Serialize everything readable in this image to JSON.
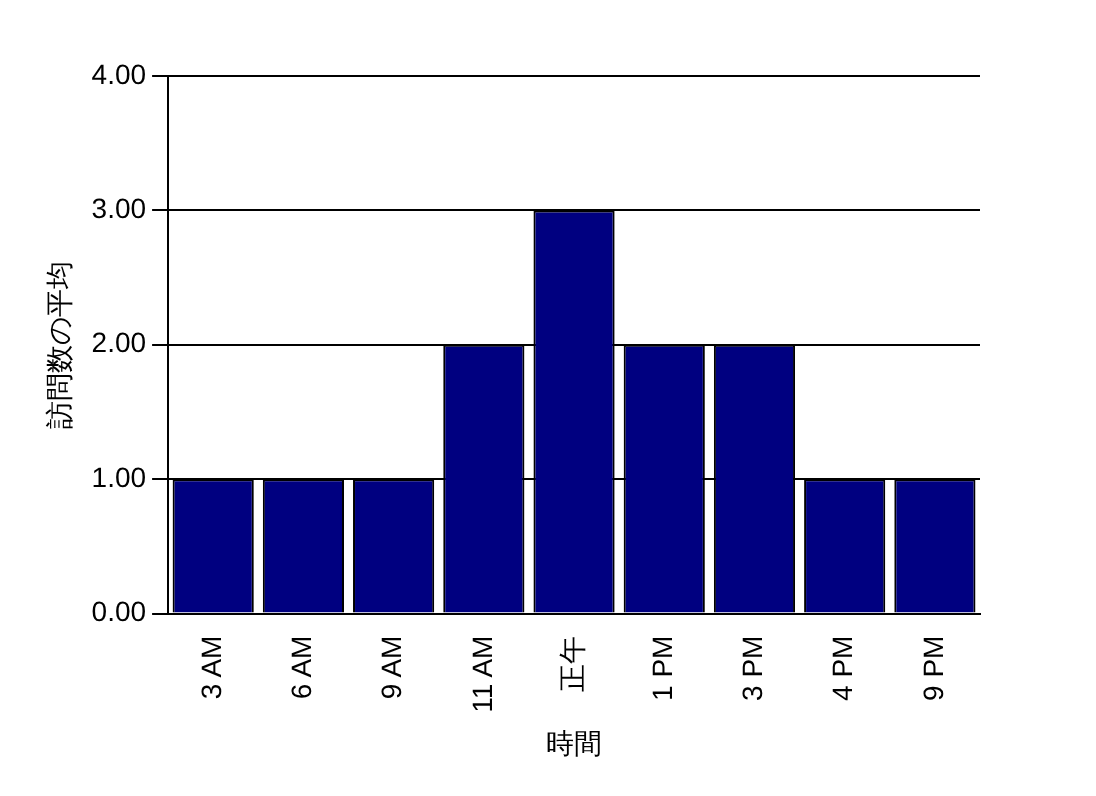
{
  "chart_data": {
    "type": "bar",
    "xlabel": "時間",
    "ylabel": "訪問数の平均",
    "categories": [
      "3 AM",
      "6 AM",
      "9 AM",
      "11 AM",
      "正午",
      "1 PM",
      "3 PM",
      "4 PM",
      "9 PM"
    ],
    "values": [
      1,
      1,
      1,
      2,
      3,
      2,
      2,
      1,
      1
    ],
    "color": "#000080",
    "ylim": [
      0,
      4
    ],
    "yticks": [
      {
        "value": 0,
        "label": "0.00"
      },
      {
        "value": 1,
        "label": "1.00"
      },
      {
        "value": 2,
        "label": "2.00"
      },
      {
        "value": 3,
        "label": "3.00"
      },
      {
        "value": 4,
        "label": "4.00"
      }
    ],
    "grid": "y",
    "legend": false
  }
}
